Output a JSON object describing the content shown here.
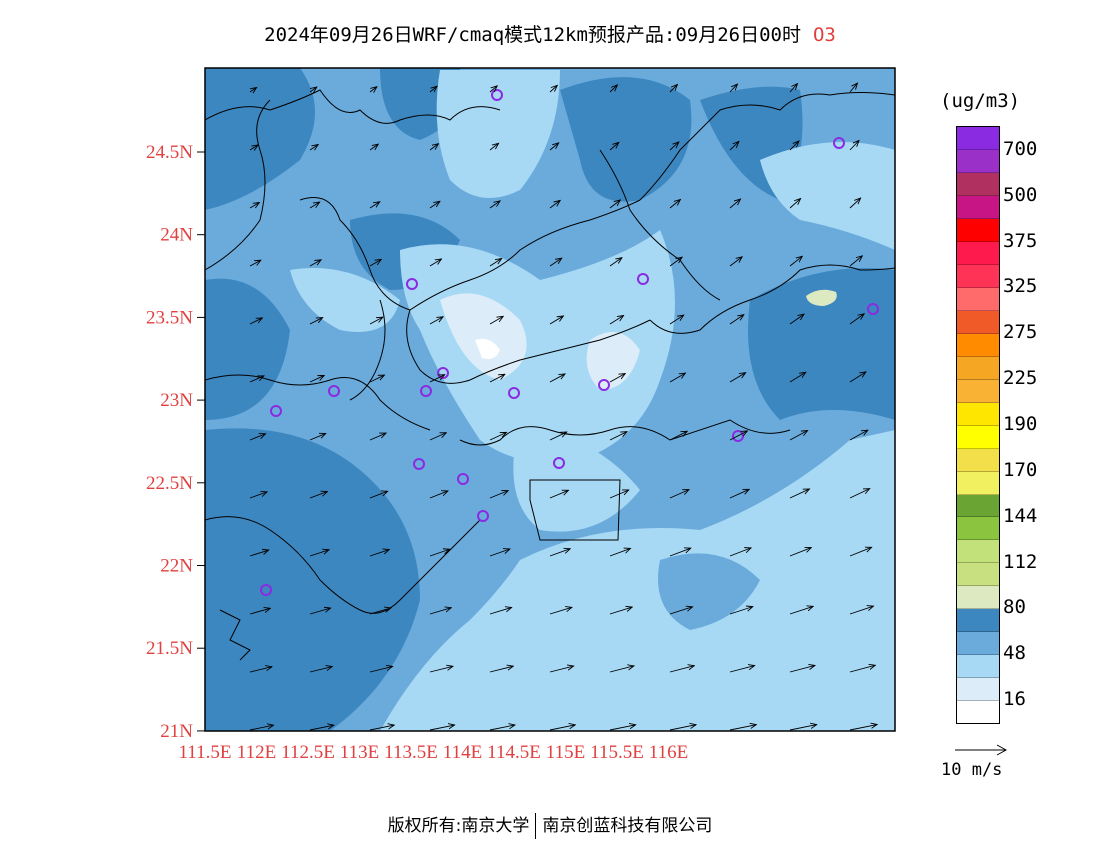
{
  "title": {
    "main": "2024年09月26日WRF/cmaq模式12km预报产品:09月26日00时",
    "tag": "O3"
  },
  "map": {
    "lat_labels": [
      "24.5N",
      "24N",
      "23.5N",
      "23N",
      "22.5N",
      "22N",
      "21.5N",
      "21N"
    ],
    "lon_labels": [
      "111.5E",
      "112E",
      "112.5E",
      "113E",
      "113.5E",
      "114E",
      "114.5E",
      "115E",
      "115.5E",
      "116E"
    ],
    "label_color": "#e0403f"
  },
  "legend": {
    "unit": "(ug/m3)",
    "labels": [
      "700",
      "500",
      "375",
      "325",
      "275",
      "225",
      "190",
      "170",
      "144",
      "112",
      "80",
      "48",
      "16"
    ],
    "colors_top_to_bottom": [
      "#8a2be2",
      "#9b30c8",
      "#b03060",
      "#c71585",
      "#ff0000",
      "#ff1a4d",
      "#ff3355",
      "#ff6a6a",
      "#f05a28",
      "#ff8c00",
      "#f5a623",
      "#f9b233",
      "#ffe600",
      "#ffff00",
      "#f2df4a",
      "#f0f060",
      "#6aa534",
      "#8bc43f",
      "#c3e17a",
      "#c8e07f",
      "#dde9c0",
      "#3d87c0",
      "#6aabdc",
      "#a7d9f5",
      "#dcecf9",
      "#ffffff"
    ]
  },
  "vector_key": {
    "label": "10 m/s"
  },
  "footer": {
    "left": "版权所有:南京大学",
    "right": "南京创蓝科技有限公司"
  }
}
